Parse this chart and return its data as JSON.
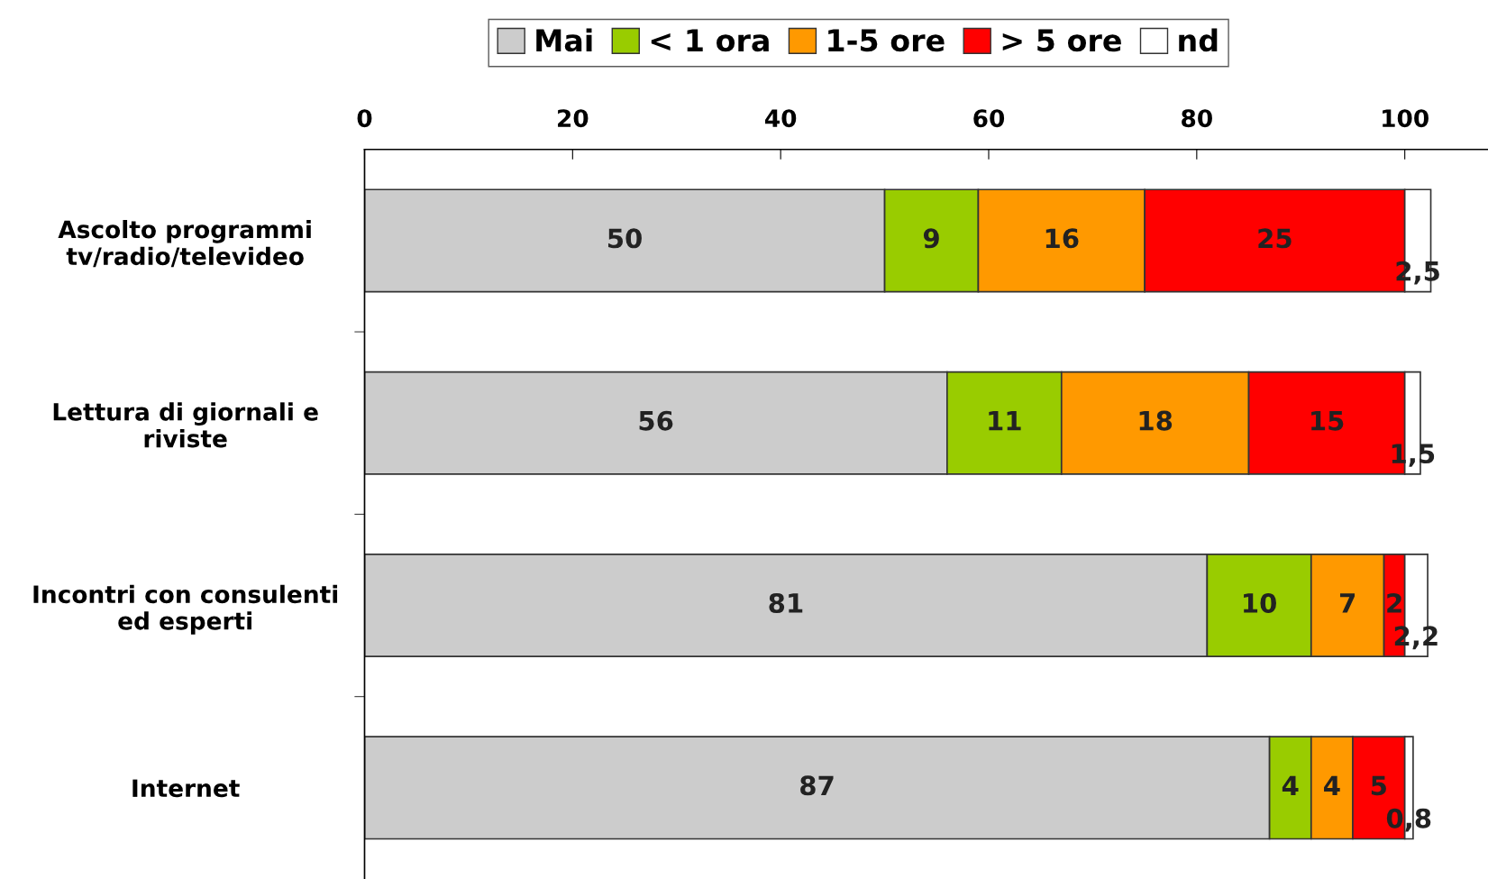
{
  "chart_data": {
    "type": "bar",
    "orientation": "horizontal",
    "stacked": true,
    "categories": [
      "Ascolto programmi\ntv/radio/televideo",
      "Lettura di giornali e\nriviste",
      "Incontri con consulenti\ned esperti",
      "Internet"
    ],
    "series": [
      {
        "name": "Mai",
        "color": "#cccccc",
        "values": [
          50,
          56,
          81,
          87
        ],
        "value_labels": [
          "50",
          "56",
          "81",
          "87"
        ]
      },
      {
        "name": "< 1 ora",
        "color": "#99cc00",
        "values": [
          9,
          11,
          10,
          4
        ],
        "value_labels": [
          "9",
          "11",
          "10",
          "4"
        ]
      },
      {
        "name": "1-5 ore",
        "color": "#ff9900",
        "values": [
          16,
          18,
          7,
          4
        ],
        "value_labels": [
          "16",
          "18",
          "7",
          "4"
        ]
      },
      {
        "name": "> 5 ore",
        "color": "#ff0000",
        "values": [
          25,
          15,
          2,
          5
        ],
        "value_labels": [
          "25",
          "15",
          "2",
          "5"
        ]
      },
      {
        "name": "nd",
        "color": "#ffffff",
        "values": [
          2.5,
          1.5,
          2.2,
          0.8
        ],
        "value_labels": [
          "2,5",
          "1,5",
          "2,2",
          "0,8"
        ]
      }
    ],
    "xlim": [
      0,
      108
    ],
    "xticks": [
      0,
      20,
      40,
      60,
      80,
      100
    ],
    "grid": false,
    "legend": "top"
  }
}
